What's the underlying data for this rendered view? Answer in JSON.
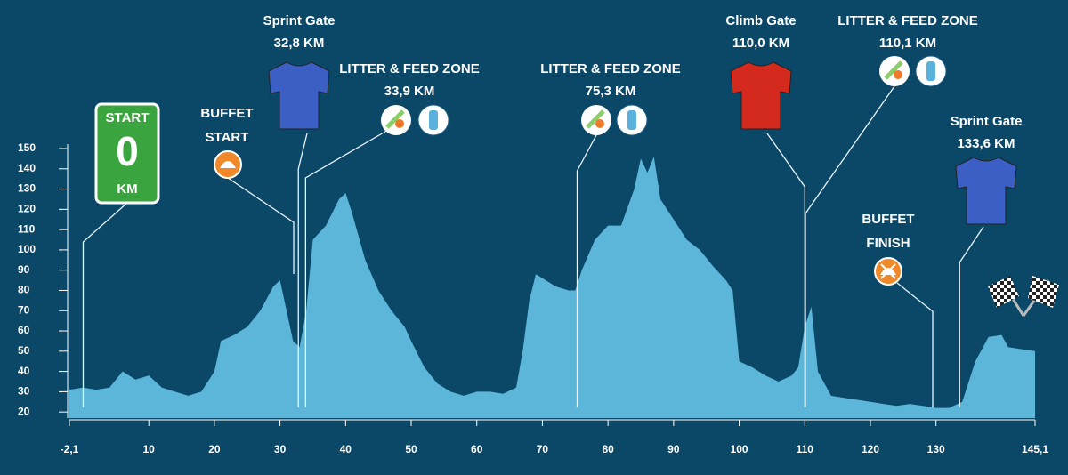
{
  "chart_data": {
    "type": "area",
    "color": "#5cb6d9",
    "x": [
      -2.1,
      0,
      2,
      4,
      6,
      8,
      10,
      12,
      14,
      16,
      18,
      20,
      21,
      23,
      25,
      27,
      29,
      30,
      31,
      32,
      33,
      34,
      35,
      37,
      39,
      40,
      41,
      43,
      45,
      47,
      49,
      50,
      52,
      54,
      56,
      58,
      60,
      62,
      64,
      66,
      67,
      68,
      69,
      70,
      72,
      74,
      75,
      76,
      78,
      80,
      82,
      84,
      85,
      86,
      87,
      88,
      90,
      92,
      94,
      96,
      98,
      99,
      100,
      102,
      104,
      106,
      108,
      109,
      110,
      111,
      112,
      114,
      116,
      118,
      120,
      122,
      124,
      126,
      128,
      130,
      132,
      134,
      136,
      138,
      140,
      141,
      145.1
    ],
    "values": [
      31,
      32,
      31,
      32,
      40,
      36,
      38,
      32,
      30,
      28,
      30,
      40,
      55,
      58,
      62,
      70,
      82,
      85,
      70,
      55,
      52,
      70,
      105,
      112,
      125,
      128,
      118,
      95,
      80,
      70,
      62,
      55,
      42,
      34,
      30,
      28,
      30,
      30,
      29,
      32,
      50,
      75,
      88,
      86,
      82,
      80,
      80,
      90,
      105,
      112,
      112,
      130,
      145,
      138,
      146,
      125,
      115,
      105,
      100,
      92,
      85,
      80,
      45,
      42,
      38,
      35,
      38,
      42,
      62,
      72,
      40,
      28,
      27,
      26,
      25,
      24,
      23,
      24,
      23,
      22,
      22,
      25,
      45,
      57,
      58,
      52,
      50
    ],
    "xlim": [
      -2.1,
      145.1
    ],
    "xticks": [
      {
        "value": -2.1,
        "label": "-2,1"
      },
      10,
      20,
      30,
      40,
      50,
      60,
      70,
      80,
      90,
      100,
      110,
      120,
      130,
      {
        "value": 145.1,
        "label": "145,1"
      }
    ],
    "ylim": [
      17,
      150
    ],
    "yticks": [
      20,
      30,
      40,
      50,
      60,
      70,
      80,
      90,
      100,
      110,
      120,
      130,
      140,
      150
    ],
    "start": {
      "title": "START",
      "km": {
        "value": 0,
        "label": "0"
      },
      "unit": "KM"
    },
    "buffet_start": "BUFFET START",
    "buffet_finish": "BUFFET FINISH",
    "annotations": [
      {
        "title": "Sprint Gate",
        "km": {
          "value": 32.8,
          "label": "32,8 KM"
        }
      },
      {
        "title": "LITTER & FEED ZONE",
        "km": {
          "value": 33.9,
          "label": "33,9 KM"
        }
      },
      {
        "title": "LITTER & FEED ZONE",
        "km": {
          "value": 75.3,
          "label": "75,3 KM"
        }
      },
      {
        "title": "Climb Gate",
        "km": {
          "value": 110.0,
          "label": "110,0 KM"
        }
      },
      {
        "title": "LITTER & FEED ZONE",
        "km": {
          "value": 110.1,
          "label": "110,1 KM"
        }
      },
      {
        "title": "Sprint Gate",
        "km": {
          "value": 133.6,
          "label": "133,6 KM"
        }
      }
    ]
  }
}
